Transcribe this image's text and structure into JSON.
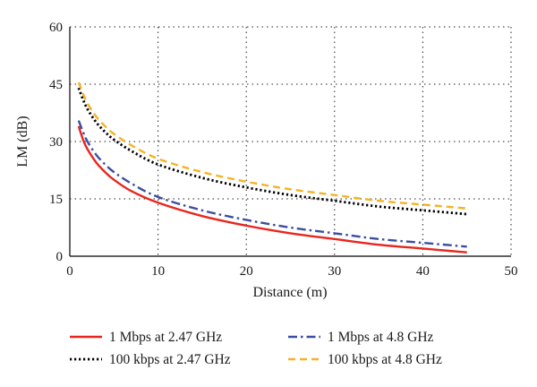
{
  "chart_data": {
    "type": "line",
    "title": "",
    "xlabel": "Distance (m)",
    "ylabel": "LM (dB)",
    "xlim": [
      0,
      50
    ],
    "ylim": [
      0,
      60
    ],
    "xticks": [
      0,
      10,
      20,
      30,
      40,
      50
    ],
    "yticks": [
      0,
      15,
      30,
      45,
      60
    ],
    "grid": true,
    "legend_position": "bottom",
    "x": [
      1,
      1.5,
      2,
      3,
      4,
      5,
      7,
      10,
      15,
      20,
      25,
      30,
      35,
      40,
      45
    ],
    "series": [
      {
        "name": "1 Mbps at 2.47 GHz",
        "color": "#e8261d",
        "style": "solid",
        "values": [
          34,
          30.5,
          28,
          24.5,
          22,
          20,
          17,
          14,
          10.5,
          8,
          6,
          4.5,
          3,
          2,
          1
        ]
      },
      {
        "name": "1 Mbps at 4.8 GHz",
        "color": "#3a4fa3",
        "style": "dashdot",
        "values": [
          35.5,
          32.5,
          30,
          26.5,
          24,
          22,
          19,
          15.5,
          12,
          9.5,
          7.5,
          6,
          4.5,
          3.5,
          2.5
        ]
      },
      {
        "name": "100 kbps at 2.47 GHz",
        "color": "#000000",
        "style": "dotted",
        "values": [
          44,
          41,
          38.5,
          35,
          32.5,
          30.5,
          27.5,
          24,
          20.5,
          18,
          16,
          14.5,
          13,
          12,
          11
        ]
      },
      {
        "name": "100 kbps at 4.8 GHz",
        "color": "#f5b324",
        "style": "dashed",
        "values": [
          45.5,
          42.5,
          40,
          36.5,
          34,
          32,
          29,
          25.5,
          22,
          19.5,
          17.5,
          16,
          14.5,
          13.5,
          12.5
        ]
      }
    ]
  }
}
